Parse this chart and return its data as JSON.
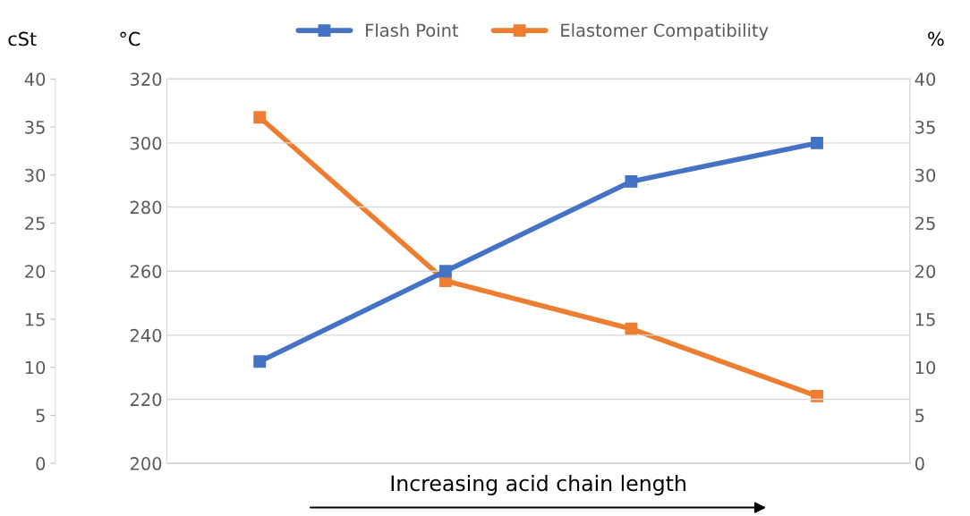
{
  "chart_data": {
    "type": "line",
    "xlabel": "Increasing acid chain length",
    "ylabel": "°C",
    "y2label": "%",
    "y3label": "cSt",
    "categories": [
      null,
      null,
      null,
      null
    ],
    "series": [
      {
        "name": "Flash Point",
        "color": "#4472c4",
        "values": [
          231.8,
          260,
          288,
          300
        ]
      },
      {
        "name": "Elastomer Compatibility",
        "color": "#ed7d31",
        "values": [
          36,
          19,
          14,
          7
        ],
        "axis": "y2"
      }
    ],
    "ylim": [
      200,
      320
    ],
    "yticks": [
      200,
      220,
      240,
      260,
      280,
      300,
      320
    ],
    "y2lim": [
      0,
      40
    ],
    "y2ticks": [
      0,
      5,
      10,
      15,
      20,
      25,
      30,
      35,
      40
    ],
    "y3lim": [
      0,
      40
    ],
    "y3ticks": [
      0,
      5,
      10,
      15,
      20,
      25,
      30,
      35,
      40
    ],
    "grid": "y",
    "legend": "top",
    "marker": "square",
    "line_style": "solid"
  }
}
